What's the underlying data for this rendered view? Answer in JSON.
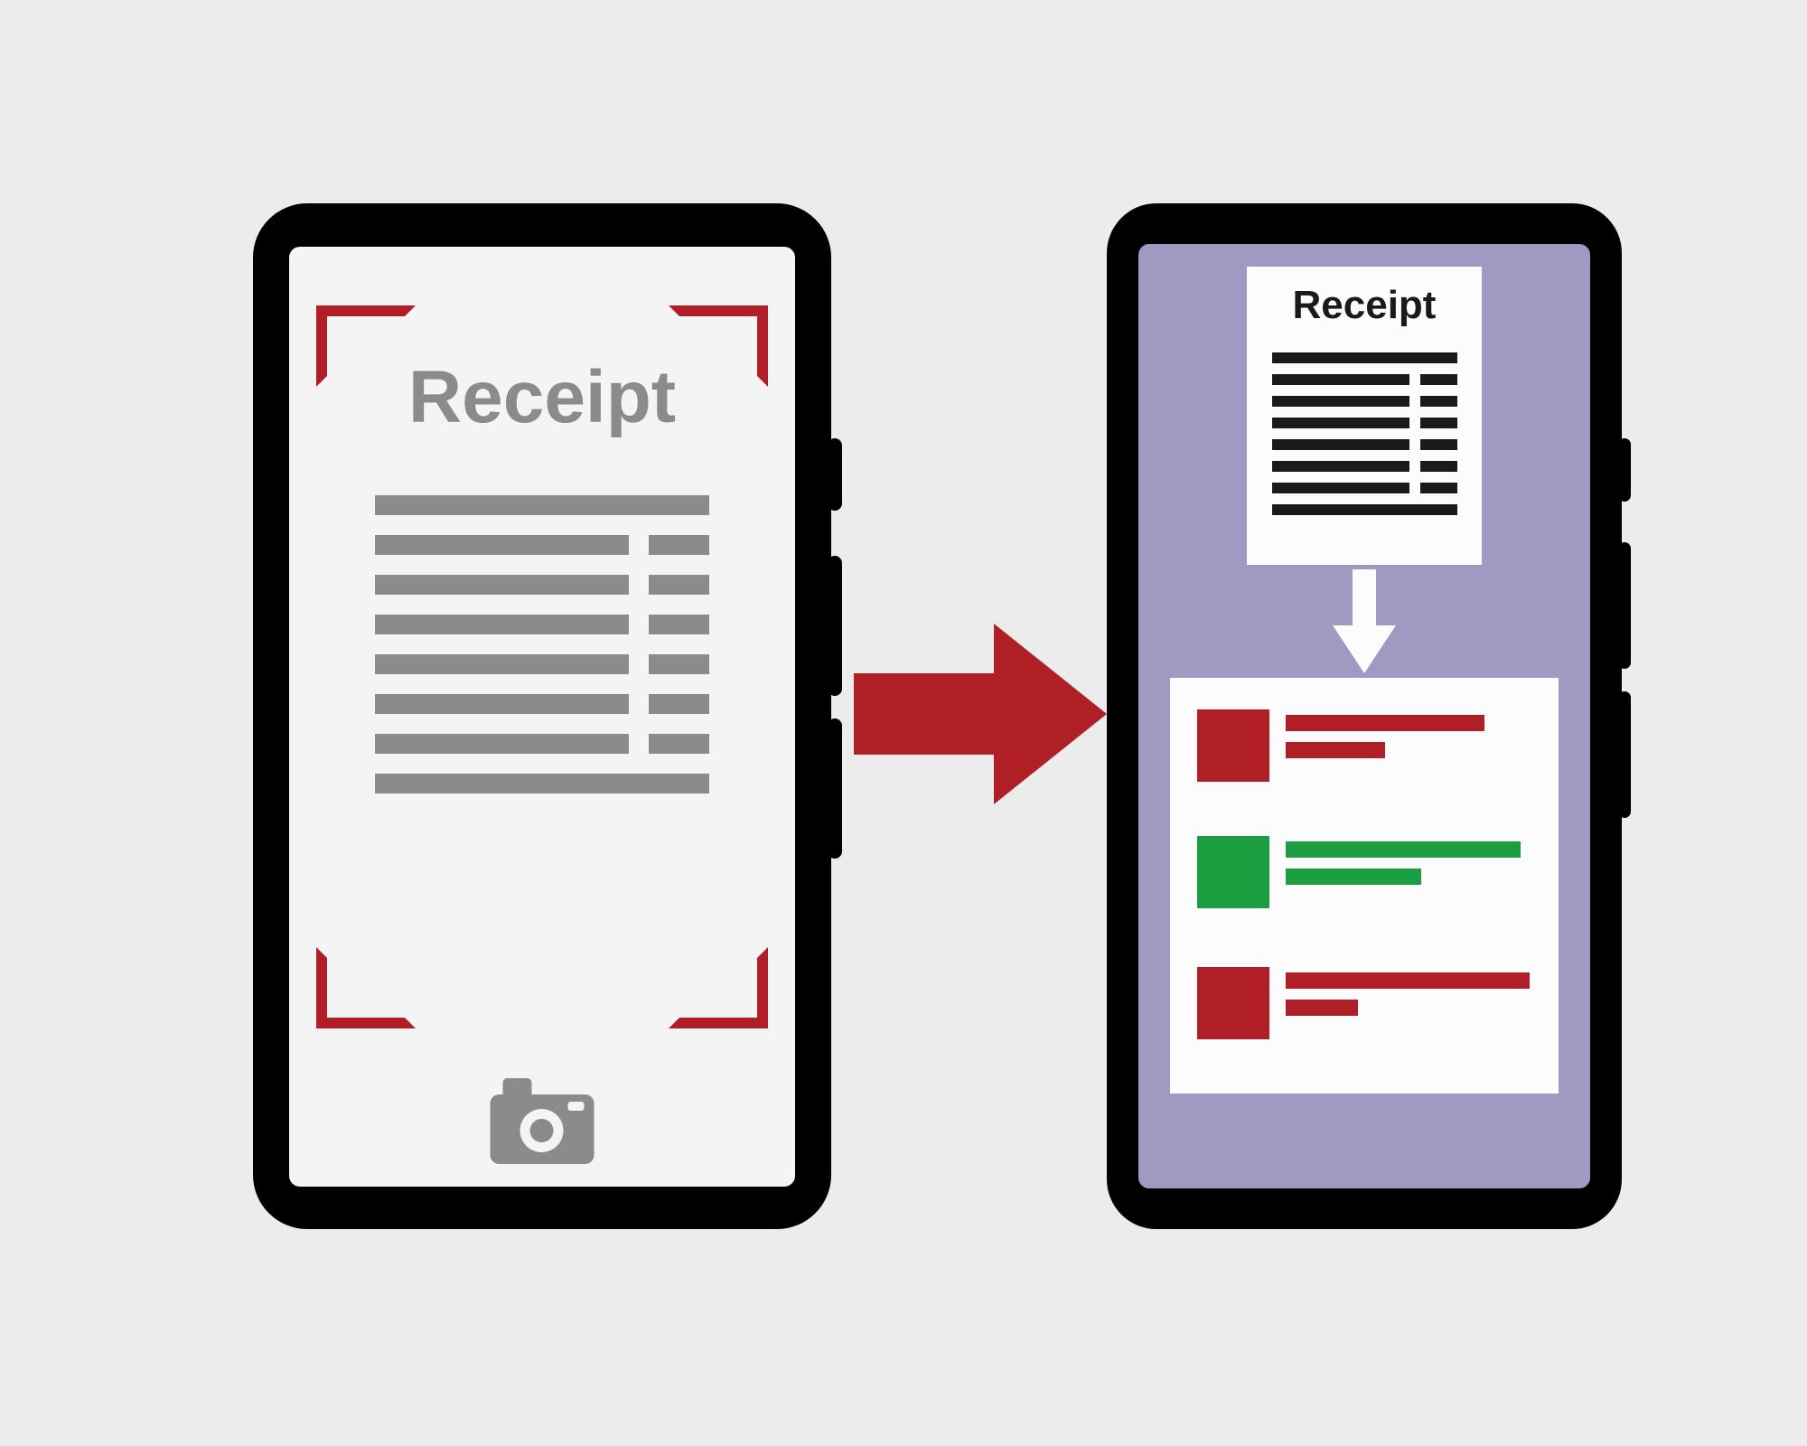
{
  "type": "infographic",
  "background_color": "#ececec",
  "colors": {
    "phone_body": "#000000",
    "screen1": "#f4f4f4",
    "screen2": "#a099c2",
    "bracket": "#af1f25",
    "receipt1_text": "#8b8b8b",
    "receipt1_lines": "#8b8b8b",
    "camera": "#8b8b8b",
    "arrow": "#af1f25",
    "receipt2_bg": "#fcfcfc",
    "receipt2_text": "#1a1a1a",
    "receipt2_lines": "#1a1a1a",
    "down_arrow": "#fcfcfc",
    "panel_bg": "#fcfcfc",
    "result_red": "#af1f25",
    "result_green": "#1a9e3f"
  },
  "phone1": {
    "receipt_title": "Receipt",
    "title_fontsize": 82,
    "line_rows": [
      {
        "type": "full"
      },
      {
        "type": "split"
      },
      {
        "type": "split"
      },
      {
        "type": "split"
      },
      {
        "type": "split"
      },
      {
        "type": "split"
      },
      {
        "type": "split"
      },
      {
        "type": "full"
      }
    ]
  },
  "phone2": {
    "receipt_title": "Receipt",
    "title_fontsize": 44,
    "line_rows": [
      {
        "type": "full"
      },
      {
        "type": "split"
      },
      {
        "type": "split"
      },
      {
        "type": "split"
      },
      {
        "type": "split"
      },
      {
        "type": "split"
      },
      {
        "type": "split"
      },
      {
        "type": "full"
      }
    ],
    "results": [
      {
        "color": "#af1f25",
        "bar1_width": 220,
        "bar2_width": 110
      },
      {
        "color": "#1a9e3f",
        "bar1_width": 260,
        "bar2_width": 150
      },
      {
        "color": "#af1f25",
        "bar1_width": 270,
        "bar2_width": 80
      }
    ]
  }
}
